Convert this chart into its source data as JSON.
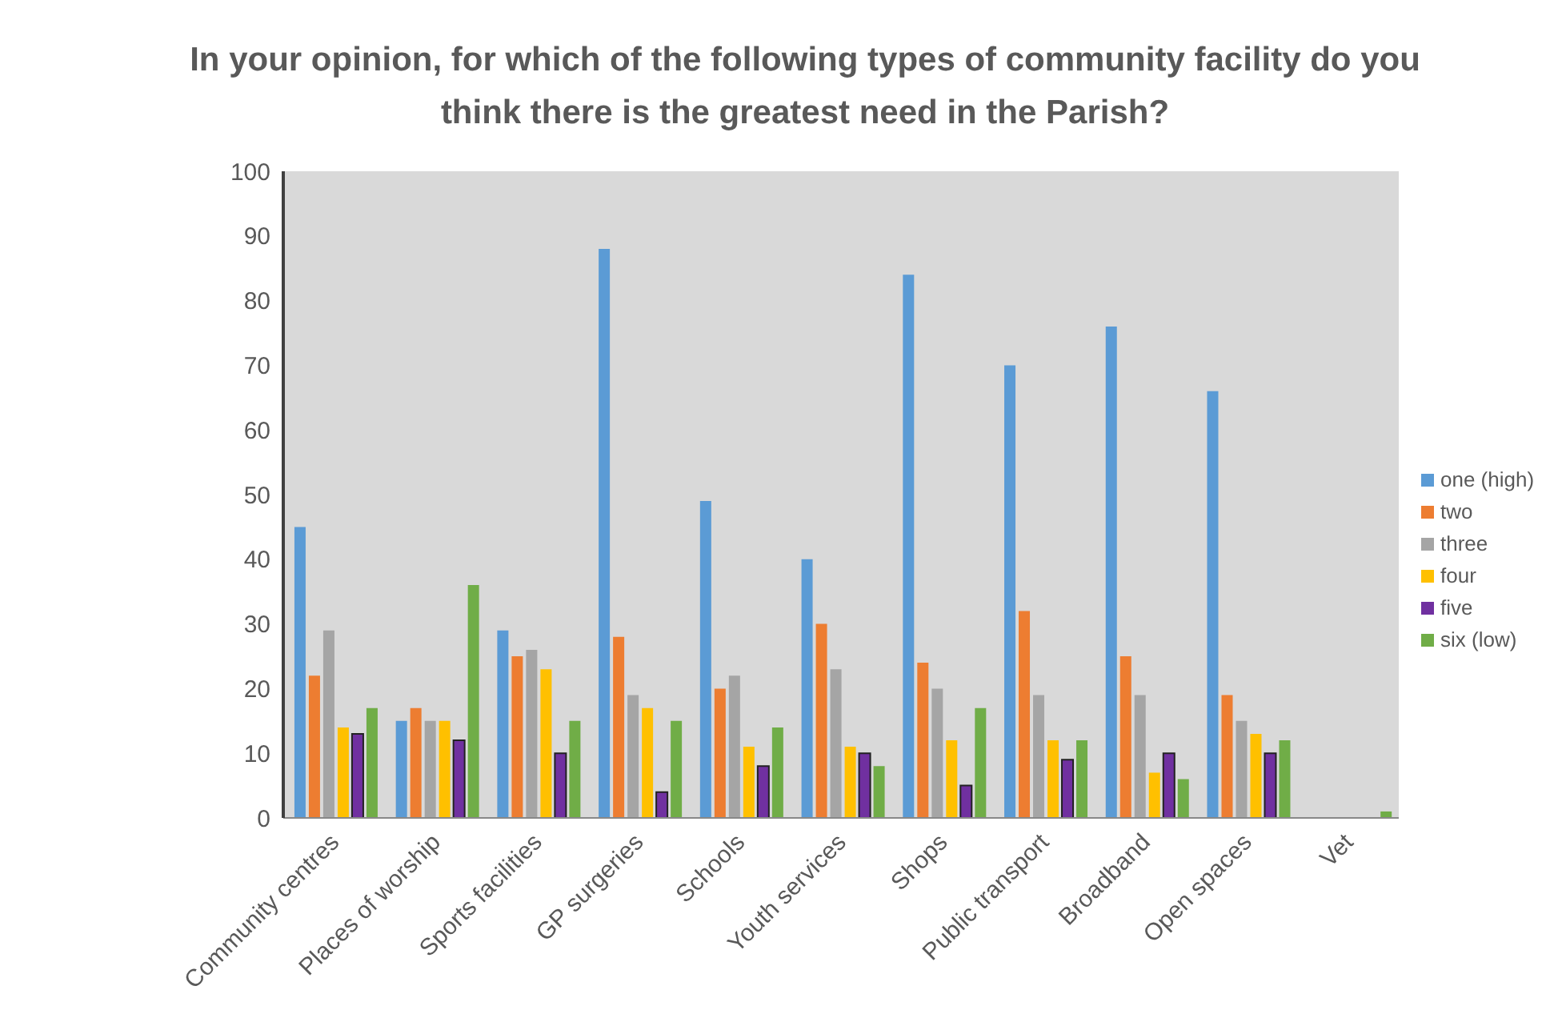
{
  "chart_data": {
    "type": "bar",
    "title": "In your opinion, for which of the following types of community facility do you think there is the greatest need in the Parish?",
    "categories": [
      "Community centres",
      "Places of worship",
      "Sports facilities",
      "GP surgeries",
      "Schools",
      "Youth services",
      "Shops",
      "Public transport",
      "Broadband",
      "Open spaces",
      "Vet"
    ],
    "series": [
      {
        "name": "one (high)",
        "color": "#5b9bd5",
        "values": [
          45,
          15,
          29,
          88,
          49,
          40,
          84,
          70,
          76,
          66,
          0
        ]
      },
      {
        "name": "two",
        "color": "#ed7d31",
        "values": [
          22,
          17,
          25,
          28,
          20,
          30,
          24,
          32,
          25,
          19,
          0
        ]
      },
      {
        "name": "three",
        "color": "#a5a5a5",
        "values": [
          29,
          15,
          26,
          19,
          22,
          23,
          20,
          19,
          19,
          15,
          0
        ]
      },
      {
        "name": "four",
        "color": "#ffc000",
        "values": [
          14,
          15,
          23,
          17,
          11,
          11,
          12,
          12,
          7,
          13,
          0
        ]
      },
      {
        "name": "five",
        "color": "#7030a0",
        "values": [
          13,
          12,
          10,
          4,
          8,
          10,
          5,
          9,
          10,
          10,
          0
        ]
      },
      {
        "name": "six (low)",
        "color": "#70ad47",
        "values": [
          17,
          36,
          15,
          15,
          14,
          8,
          17,
          12,
          6,
          12,
          1
        ]
      }
    ],
    "ylim": [
      0,
      100
    ],
    "yticks": [
      0,
      10,
      20,
      30,
      40,
      50,
      60,
      70,
      80,
      90,
      100
    ],
    "legend": "right"
  }
}
